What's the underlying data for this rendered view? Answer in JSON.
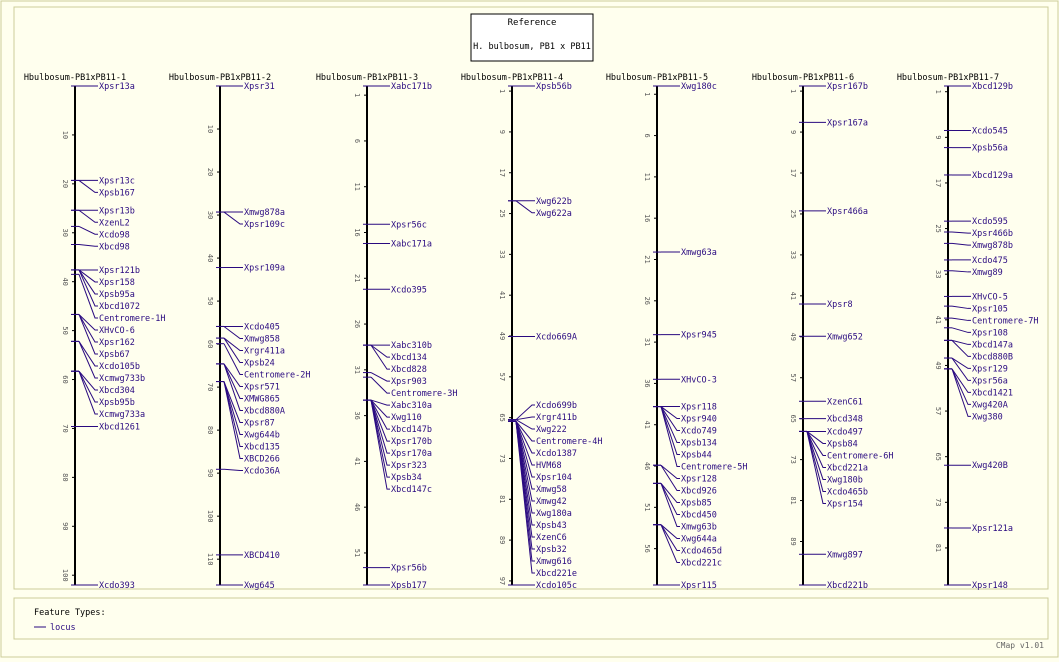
{
  "reference": {
    "title": "Reference",
    "subtitle": "H. bulbosum, PB1 x PB11"
  },
  "legend": {
    "heading": "Feature Types:",
    "items": [
      {
        "label": "locus",
        "color": "#2a0a80"
      }
    ]
  },
  "footer": "CMap v1.01",
  "colors": {
    "background": "#ffffee",
    "panel_border": "#cccc99",
    "axis": "#000000",
    "feature": "#2a0a80"
  },
  "maps": [
    {
      "name": "Hbulbosum-PB1xPB11-1",
      "start": 0,
      "end": 102,
      "ticks": [
        10,
        20,
        30,
        40,
        50,
        60,
        70,
        80,
        90,
        100
      ],
      "features": [
        {
          "name": "Xpsr13a",
          "pos": 0
        },
        {
          "name": "Xpsr13c",
          "pos": 19.3
        },
        {
          "name": "Xpsb167",
          "pos": 19.3
        },
        {
          "name": "Xpsr13b",
          "pos": 25.4
        },
        {
          "name": "XzenL2",
          "pos": 25.4
        },
        {
          "name": "Xcdo98",
          "pos": 28.7
        },
        {
          "name": "Xbcd98",
          "pos": 32.4
        },
        {
          "name": "Xpsr121b",
          "pos": 37.6
        },
        {
          "name": "Xpsr158",
          "pos": 37.6
        },
        {
          "name": "Xpsb95a",
          "pos": 37.6
        },
        {
          "name": "Xbcd1072",
          "pos": 37.6
        },
        {
          "name": "Centromere-1H",
          "pos": 38.5
        },
        {
          "name": "XHvCO-6",
          "pos": 46.7
        },
        {
          "name": "Xpsr162",
          "pos": 46.7
        },
        {
          "name": "Xpsb67",
          "pos": 46.7
        },
        {
          "name": "Xcdo105b",
          "pos": 52.2
        },
        {
          "name": "Xcmwg733b",
          "pos": 52.2
        },
        {
          "name": "Xbcd304",
          "pos": 58.3
        },
        {
          "name": "Xpsb95b",
          "pos": 58.3
        },
        {
          "name": "Xcmwg733a",
          "pos": 58.3
        },
        {
          "name": "Xbcd1261",
          "pos": 69.6
        },
        {
          "name": "Xcdo393",
          "pos": 102
        }
      ]
    },
    {
      "name": "Hbulbosum-PB1xPB11-2",
      "start": 0,
      "end": 116,
      "ticks": [
        10,
        20,
        30,
        40,
        50,
        60,
        70,
        80,
        90,
        100,
        110
      ],
      "features": [
        {
          "name": "Xpsr31",
          "pos": 0
        },
        {
          "name": "Xmwg878a",
          "pos": 29.3
        },
        {
          "name": "Xpsr109c",
          "pos": 29.3
        },
        {
          "name": "Xpsr109a",
          "pos": 42.2
        },
        {
          "name": "Xcdo405",
          "pos": 55.9
        },
        {
          "name": "Xmwg858",
          "pos": 55.9
        },
        {
          "name": "Xrgr411a",
          "pos": 58.6
        },
        {
          "name": "Xpsb24",
          "pos": 58.6
        },
        {
          "name": "Centromere-2H",
          "pos": 59.9
        },
        {
          "name": "Xpsr571",
          "pos": 64.6
        },
        {
          "name": "XMWG865",
          "pos": 64.6
        },
        {
          "name": "Xbcd880A",
          "pos": 64.6
        },
        {
          "name": "Xpsr87",
          "pos": 68.7
        },
        {
          "name": "Xwg644b",
          "pos": 68.7
        },
        {
          "name": "Xbcd135",
          "pos": 68.7
        },
        {
          "name": "XBCD266",
          "pos": 68.7
        },
        {
          "name": "Xcdo36A",
          "pos": 89.1
        },
        {
          "name": "XBCD410",
          "pos": 109
        },
        {
          "name": "Xwg645",
          "pos": 116
        }
      ]
    },
    {
      "name": "Hbulbosum-PB1xPB11-3",
      "start": 0,
      "end": 54.5,
      "ticks": [
        1,
        6,
        11,
        16,
        21,
        26,
        31,
        36,
        41,
        46,
        51
      ],
      "features": [
        {
          "name": "Xabc171b",
          "pos": 0
        },
        {
          "name": "Xpsr56c",
          "pos": 15.1
        },
        {
          "name": "Xabc171a",
          "pos": 17.2
        },
        {
          "name": "Xcdo395",
          "pos": 22.2
        },
        {
          "name": "Xabc310b",
          "pos": 28.3
        },
        {
          "name": "Xbcd134",
          "pos": 28.3
        },
        {
          "name": "Xbcd828",
          "pos": 28.3
        },
        {
          "name": "Xpsr903",
          "pos": 31.3
        },
        {
          "name": "Centromere-3H",
          "pos": 31.8
        },
        {
          "name": "Xabc310a",
          "pos": 34.3
        },
        {
          "name": "Xwg110",
          "pos": 34.3
        },
        {
          "name": "Xbcd147b",
          "pos": 34.3
        },
        {
          "name": "Xpsr170b",
          "pos": 34.3
        },
        {
          "name": "Xpsr170a",
          "pos": 34.3
        },
        {
          "name": "Xpsr323",
          "pos": 34.3
        },
        {
          "name": "Xpsb34",
          "pos": 34.3
        },
        {
          "name": "Xbcd147c",
          "pos": 34.3
        },
        {
          "name": "Xpsr56b",
          "pos": 52.6
        },
        {
          "name": "Xpsb177",
          "pos": 54.5
        }
      ]
    },
    {
      "name": "Hbulbosum-PB1xPB11-4",
      "start": 0,
      "end": 97.8,
      "ticks": [
        1,
        9,
        17,
        25,
        33,
        41,
        49,
        57,
        65,
        73,
        81,
        89,
        97
      ],
      "features": [
        {
          "name": "Xpsb56b",
          "pos": 0
        },
        {
          "name": "Xwg622b",
          "pos": 22.5
        },
        {
          "name": "Xwg622a",
          "pos": 22.5
        },
        {
          "name": "Xcdo669A",
          "pos": 49.1
        },
        {
          "name": "Xcdo699b",
          "pos": 65.4
        },
        {
          "name": "Xrgr411b",
          "pos": 65.4
        },
        {
          "name": "Xwg222",
          "pos": 65.4
        },
        {
          "name": "Centromere-4H",
          "pos": 65.7
        },
        {
          "name": "Xcdo1387",
          "pos": 65.7
        },
        {
          "name": "HVM68",
          "pos": 65.7
        },
        {
          "name": "Xpsr104",
          "pos": 65.7
        },
        {
          "name": "Xmwg58",
          "pos": 65.7
        },
        {
          "name": "Xmwg42",
          "pos": 65.7
        },
        {
          "name": "Xwg180a",
          "pos": 65.7
        },
        {
          "name": "Xpsb43",
          "pos": 65.7
        },
        {
          "name": "XzenC6",
          "pos": 65.7
        },
        {
          "name": "Xpsb32",
          "pos": 65.7
        },
        {
          "name": "Xmwg616",
          "pos": 65.7
        },
        {
          "name": "Xbcd221e",
          "pos": 65.7
        },
        {
          "name": "Xcdo105c",
          "pos": 97.8
        }
      ]
    },
    {
      "name": "Hbulbosum-PB1xPB11-5",
      "start": 0,
      "end": 60.4,
      "ticks": [
        1,
        6,
        11,
        16,
        21,
        26,
        31,
        36,
        41,
        46,
        51,
        56
      ],
      "features": [
        {
          "name": "Xwg180c",
          "pos": 0
        },
        {
          "name": "Xmwg63a",
          "pos": 20.1
        },
        {
          "name": "Xpsr945",
          "pos": 30.1
        },
        {
          "name": "XHvCO-3",
          "pos": 35.5
        },
        {
          "name": "Xpsr118",
          "pos": 38.8
        },
        {
          "name": "Xpsr940",
          "pos": 38.8
        },
        {
          "name": "Xcdo749",
          "pos": 38.8
        },
        {
          "name": "Xpsb134",
          "pos": 38.8
        },
        {
          "name": "Xpsb44",
          "pos": 38.8
        },
        {
          "name": "Centromere-5H",
          "pos": 38.8
        },
        {
          "name": "Xpsr128",
          "pos": 45.9
        },
        {
          "name": "Xbcd926",
          "pos": 45.9
        },
        {
          "name": "Xpsb85",
          "pos": 48.1
        },
        {
          "name": "Xbcd450",
          "pos": 48.1
        },
        {
          "name": "Xmwg63b",
          "pos": 48.1
        },
        {
          "name": "Xwg644a",
          "pos": 53.1
        },
        {
          "name": "Xcdo465d",
          "pos": 53.1
        },
        {
          "name": "Xbcd221c",
          "pos": 53.1
        },
        {
          "name": "Xpsr115",
          "pos": 60.4
        }
      ]
    },
    {
      "name": "Hbulbosum-PB1xPB11-6",
      "start": 0,
      "end": 97.5,
      "ticks": [
        1,
        9,
        17,
        25,
        33,
        41,
        49,
        57,
        65,
        73,
        81,
        89
      ],
      "features": [
        {
          "name": "Xpsr167b",
          "pos": 0
        },
        {
          "name": "Xpsr167a",
          "pos": 7.1
        },
        {
          "name": "Xpsr466a",
          "pos": 24.4
        },
        {
          "name": "Xpsr8",
          "pos": 42.6
        },
        {
          "name": "Xmwg652",
          "pos": 48.9
        },
        {
          "name": "XzenC61",
          "pos": 61.6
        },
        {
          "name": "Xbcd348",
          "pos": 65
        },
        {
          "name": "Xcdo497",
          "pos": 67.5
        },
        {
          "name": "Xpsb84",
          "pos": 67.5
        },
        {
          "name": "Centromere-6H",
          "pos": 67.5
        },
        {
          "name": "Xbcd221a",
          "pos": 67.5
        },
        {
          "name": "Xwg180b",
          "pos": 67.5
        },
        {
          "name": "Xcdo465b",
          "pos": 67.5
        },
        {
          "name": "Xpsr154",
          "pos": 67.5
        },
        {
          "name": "Xmwg897",
          "pos": 91.5
        },
        {
          "name": "Xbcd221b",
          "pos": 97.5
        }
      ]
    },
    {
      "name": "Hbulbosum-PB1xPB11-7",
      "start": 0,
      "end": 87.5,
      "ticks": [
        1,
        9,
        17,
        25,
        33,
        41,
        49,
        57,
        65,
        73,
        81
      ],
      "features": [
        {
          "name": "Xbcd129b",
          "pos": 0
        },
        {
          "name": "Xcdo545",
          "pos": 7.8
        },
        {
          "name": "Xpsb56a",
          "pos": 10.8
        },
        {
          "name": "Xbcd129a",
          "pos": 15.6
        },
        {
          "name": "Xcdo595",
          "pos": 23.7
        },
        {
          "name": "Xpsr466b",
          "pos": 25.6
        },
        {
          "name": "Xmwg878b",
          "pos": 27.6
        },
        {
          "name": "Xcdo475",
          "pos": 30.5
        },
        {
          "name": "Xmwg89",
          "pos": 32.4
        },
        {
          "name": "XHvCO-5",
          "pos": 36.9
        },
        {
          "name": "Xpsr105",
          "pos": 38.6
        },
        {
          "name": "Centromere-7H",
          "pos": 40.7
        },
        {
          "name": "Xpsr108",
          "pos": 42.4
        },
        {
          "name": "Xbcd147a",
          "pos": 44.6
        },
        {
          "name": "Xbcd880B",
          "pos": 44.6
        },
        {
          "name": "Xpsr129",
          "pos": 47.7
        },
        {
          "name": "Xpsr56a",
          "pos": 47.7
        },
        {
          "name": "Xbcd1421",
          "pos": 49.6
        },
        {
          "name": "Xwg420A",
          "pos": 49.6
        },
        {
          "name": "Xwg380",
          "pos": 49.6
        },
        {
          "name": "Xwg420B",
          "pos": 66.5
        },
        {
          "name": "Xpsr121a",
          "pos": 77.5
        },
        {
          "name": "Xpsr148",
          "pos": 87.5
        }
      ]
    }
  ]
}
